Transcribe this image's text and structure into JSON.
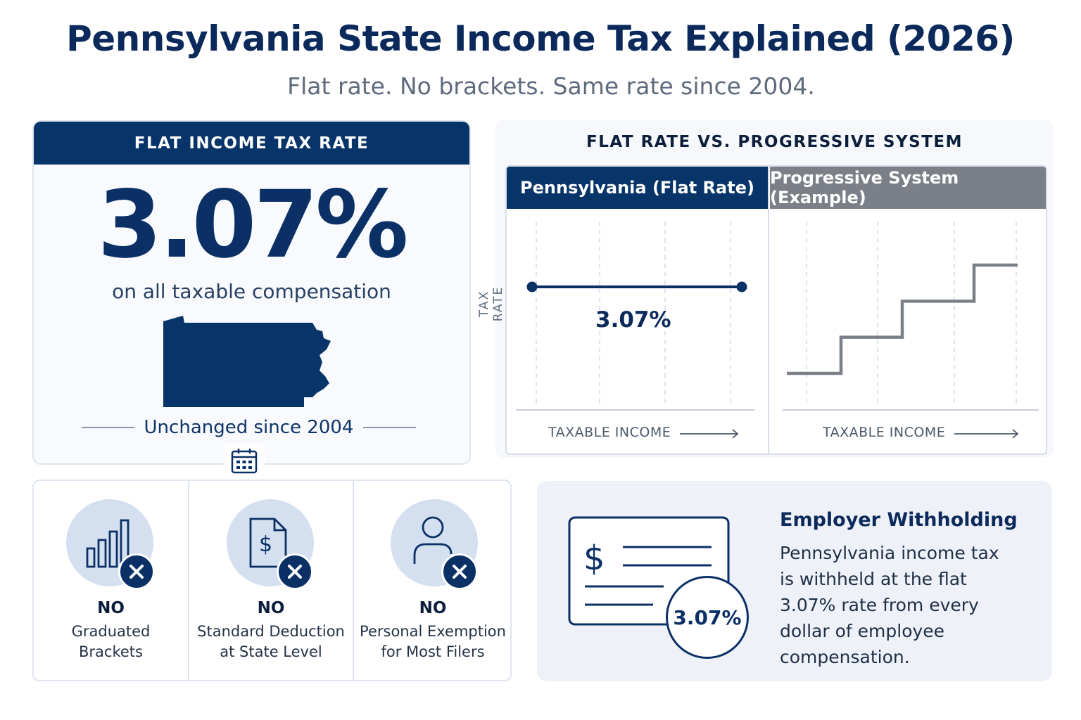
{
  "header": {
    "title": "Pennsylvania State Income Tax Explained (2026)",
    "subtitle": "Flat rate. No brackets. Same rate since 2004."
  },
  "rate_card": {
    "header": "FLAT INCOME TAX RATE",
    "rate": "3.07%",
    "caption": "on all taxable compensation",
    "since": "Unchanged since 2004",
    "state_icon": "pennsylvania-map-icon",
    "calendar_icon": "calendar-icon"
  },
  "comparison": {
    "title": "FLAT RATE VS. PROGRESSIVE SYSTEM",
    "flat_header": "Pennsylvania (Flat Rate)",
    "progressive_header": "Progressive System (Example)",
    "y_axis_label": "TAX RATE",
    "x_axis_label_flat": "TAXABLE INCOME",
    "x_axis_label_progressive": "TAXABLE INCOME",
    "flat_value_label": "3.07%"
  },
  "chart_data": {
    "type": "line",
    "series": [
      {
        "name": "Pennsylvania (Flat Rate)",
        "values": [
          3.07,
          3.07
        ]
      },
      {
        "name": "Progressive System (Example)",
        "steps": [
          1,
          2,
          3,
          4
        ]
      }
    ],
    "xlabel": "TAXABLE INCOME",
    "ylabel": "TAX RATE",
    "grid": true
  },
  "features": [
    {
      "no": "NO",
      "line1": "Graduated",
      "line2": "Brackets",
      "icon": "bar-chart-icon"
    },
    {
      "no": "NO",
      "line1": "Standard Deduction",
      "line2": "at State Level",
      "icon": "document-dollar-icon"
    },
    {
      "no": "NO",
      "line1": "Personal Exemption",
      "line2": "for Most Filers",
      "icon": "person-icon"
    }
  ],
  "withholding": {
    "title": "Employer Withholding",
    "body_lines": [
      "Pennsylvania income tax",
      "is withheld at the flat",
      "3.07% rate from every",
      "dollar of employee",
      "compensation."
    ],
    "badge": "3.07%",
    "icon": "paycheck-icon"
  },
  "colors": {
    "navy": "#073469",
    "gray_header": "#7b7f87",
    "light_blue": "#d4e0ef",
    "panel_bg": "#eef2f8"
  }
}
